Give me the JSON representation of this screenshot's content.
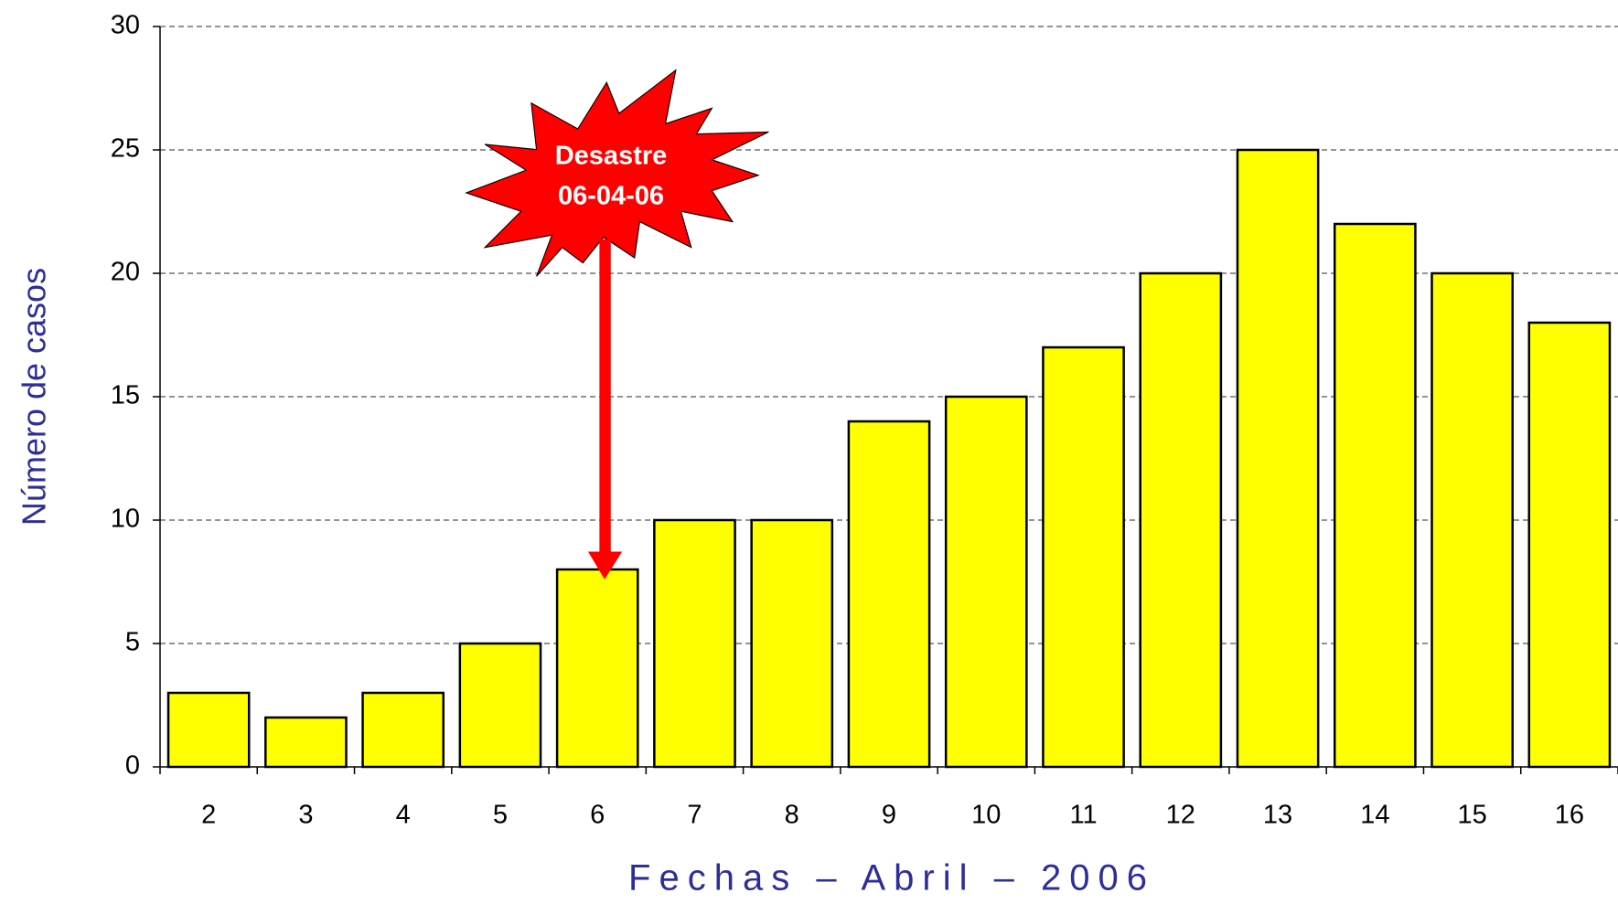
{
  "chart_data": {
    "type": "bar",
    "x_label": "Fechas – Abril – 2006",
    "y_label": "Número de casos",
    "annotation": [
      "Desastre",
      "06-04-06"
    ],
    "categories": [
      "2",
      "3",
      "4",
      "5",
      "6",
      "7",
      "8",
      "9",
      "10",
      "11",
      "12",
      "13",
      "14",
      "15",
      "16"
    ],
    "values": [
      3,
      2,
      3,
      5,
      8,
      10,
      10,
      14,
      15,
      17,
      20,
      25,
      22,
      20,
      18
    ],
    "color": "#ffff00",
    "ylim": [
      0,
      30
    ],
    "yticks": [
      0,
      5,
      10,
      15,
      20,
      25,
      30
    ],
    "grid": true
  }
}
